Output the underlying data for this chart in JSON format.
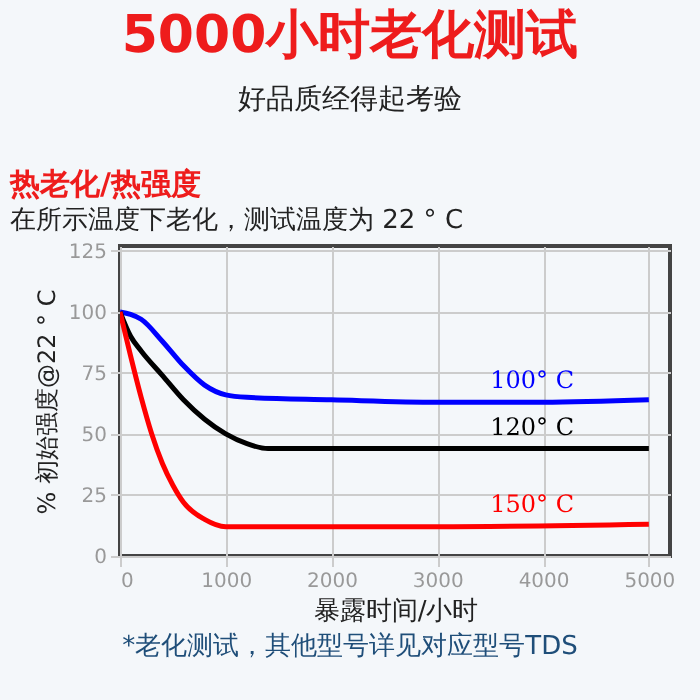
{
  "chart_data": {
    "type": "line",
    "title": "5000小时老化测试",
    "subtitle": "好品质经得起考验",
    "annotations": [
      "热老化/热强度",
      "在所示温度下老化，测试温度为 22 ° C",
      "*老化测试，其他型号详见对应型号TDS"
    ],
    "xlabel": "暴露时间/小时",
    "ylabel": "% 初始强度@22 ° C",
    "xlim": [
      0,
      5200
    ],
    "xticks": [
      0,
      1000,
      2000,
      3000,
      4000,
      5000
    ],
    "ylim": [
      0,
      127
    ],
    "yticks": [
      0,
      25,
      50,
      75,
      100,
      125
    ],
    "grid": true,
    "legend": false,
    "marker": "none",
    "line_style": "solid",
    "series": [
      {
        "name": "100° C",
        "color": "#0000ff",
        "x": [
          0,
          100,
          200,
          400,
          600,
          800,
          1000,
          1200,
          2000,
          3000,
          4000,
          5000
        ],
        "values": [
          100,
          99,
          97,
          88,
          78,
          70,
          66,
          65,
          64,
          63,
          63,
          64
        ]
      },
      {
        "name": "120° C",
        "color": "#000000",
        "x": [
          0,
          100,
          200,
          400,
          600,
          800,
          1000,
          1200,
          1400,
          2000,
          3000,
          5000
        ],
        "values": [
          100,
          90,
          84,
          74,
          64,
          56,
          50,
          46,
          44,
          44,
          44,
          44
        ]
      },
      {
        "name": "150° C",
        "color": "#ff0000",
        "x": [
          0,
          100,
          200,
          300,
          400,
          500,
          600,
          800,
          1000,
          2000,
          3000,
          5000
        ],
        "values": [
          100,
          82,
          65,
          50,
          38,
          29,
          22,
          15,
          12,
          12,
          12,
          13
        ]
      }
    ]
  }
}
